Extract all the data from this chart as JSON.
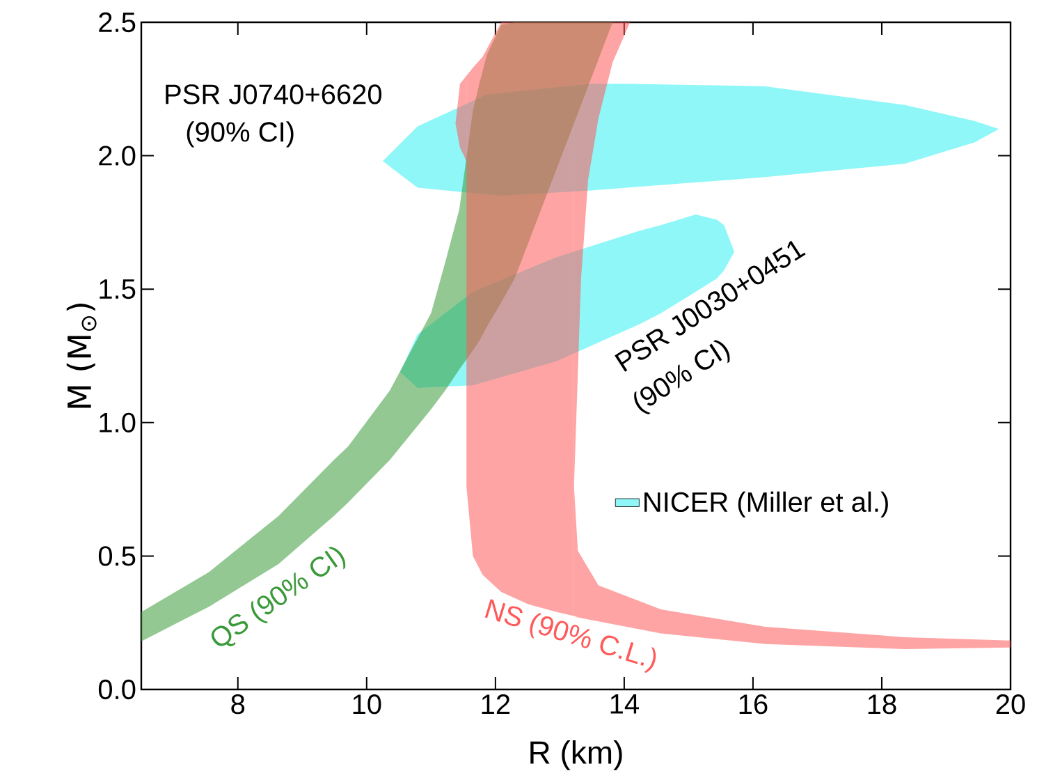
{
  "chart_data": {
    "type": "area",
    "xlabel": "R (km)",
    "ylabel": "M (M$_{⊙}$)",
    "xlim": [
      6.5,
      20
    ],
    "ylim": [
      0,
      2.5
    ],
    "xticks": [
      8,
      10,
      12,
      14,
      16,
      18,
      20
    ],
    "yticks": [
      {
        "value": 0,
        "label": "0.0"
      },
      {
        "value": 0.5,
        "label": "0.5"
      },
      {
        "value": 1,
        "label": "1.0"
      },
      {
        "value": 1.5,
        "label": "1.5"
      },
      {
        "value": 2,
        "label": "2.0"
      },
      {
        "value": 2.5,
        "label": "2.5"
      }
    ],
    "legend": "right",
    "series": [
      {
        "name": "NICER (Miller et al.)",
        "color": "#33f0f0",
        "x": [
          10.25,
          10.79,
          11.87,
          12.09,
          13.49,
          14.03,
          16.19,
          18.36,
          19.44,
          19.82
        ],
        "values": [
          null,
          null,
          null,
          null,
          null,
          null,
          null,
          null,
          null,
          null
        ],
        "upper": [
          1.98,
          2.11,
          2.23,
          2.235,
          2.27,
          2.27,
          2.26,
          2.19,
          2.13,
          2.1
        ],
        "lower": [
          1.98,
          1.88,
          1.855,
          1.85,
          1.87,
          1.88,
          1.92,
          1.97,
          2.05,
          2.1
        ]
      },
      {
        "color": "#33f0f0",
        "x": [
          10.52,
          10.79,
          11.65,
          12.95,
          14.25,
          14.57,
          15.11,
          15.44,
          15.55,
          15.71
        ],
        "values": [
          null,
          null,
          null,
          null,
          null,
          null,
          null,
          null,
          null,
          null
        ],
        "upper": [
          1.19,
          1.33,
          1.49,
          1.62,
          1.72,
          1.74,
          1.78,
          1.76,
          1.74,
          1.64
        ],
        "lower": [
          1.19,
          1.13,
          1.14,
          1.23,
          1.37,
          1.41,
          1.49,
          1.54,
          1.57,
          1.64
        ]
      },
      {
        "name": "QS (90% CI)",
        "color": "#3a9a3a",
        "x": [
          6.5,
          7.55,
          8.63,
          9.49,
          9.71,
          10.36,
          11.0,
          11.22,
          11.44,
          11.65,
          11.76,
          11.87,
          12.09,
          12.3,
          13.82
        ],
        "values": [
          null,
          null,
          null,
          null,
          null,
          null,
          null,
          null,
          null,
          null,
          null,
          null,
          null,
          null,
          null
        ],
        "upper": [
          0.29,
          0.44,
          0.65,
          0.86,
          0.91,
          1.12,
          1.41,
          1.6,
          1.8,
          2.17,
          2.28,
          2.38,
          2.49,
          2.5,
          2.5
        ],
        "lower": [
          0.18,
          0.31,
          0.47,
          0.65,
          0.7,
          0.86,
          1.05,
          1.12,
          1.2,
          1.27,
          1.31,
          1.36,
          1.45,
          1.54,
          2.5
        ]
      },
      {
        "name": "NS (90% C.L.)",
        "color": "#ff5a5a",
        "x": [
          11.55,
          11.65,
          11.8,
          12.09,
          12.5,
          12.95,
          13.22
        ],
        "values": [
          null,
          null,
          null,
          null,
          null,
          null,
          null
        ],
        "upper": [
          2.3,
          2.33,
          2.37,
          2.5,
          2.5,
          2.5,
          2.5
        ],
        "lower": [
          0.76,
          0.5,
          0.43,
          0.365,
          0.32,
          0.29,
          0.275
        ]
      },
      {
        "color": "#ff5a5a",
        "x": [
          13.22,
          13.33,
          13.44,
          13.6,
          13.82,
          14.09
        ],
        "values": [
          null,
          null,
          null,
          null,
          null,
          null
        ],
        "upper": [
          2.5,
          2.5,
          2.5,
          2.5,
          2.5,
          2.5
        ],
        "lower": [
          0.76,
          1.54,
          1.91,
          2.14,
          2.35,
          2.5
        ]
      },
      {
        "color": "#ff5a5a",
        "x": [
          13.22,
          13.28,
          13.6,
          14.57,
          16.19,
          18.36,
          20
        ],
        "values": [
          null,
          null,
          null,
          null,
          null,
          null,
          null
        ],
        "upper": [
          0.76,
          0.52,
          0.39,
          0.3,
          0.235,
          0.196,
          0.183
        ],
        "lower": [
          0.275,
          0.27,
          0.255,
          0.21,
          0.17,
          0.151,
          0.157
        ]
      },
      {
        "color": "#ff5a5a",
        "x": [
          11.38,
          11.45,
          11.55
        ],
        "values": [
          null,
          null,
          null
        ],
        "upper": [
          2.12,
          2.27,
          2.3
        ],
        "lower": [
          2.12,
          2.03,
          1.98
        ]
      }
    ],
    "annotations": [
      "PSR J0740+6620",
      "(90% CI)",
      "PSR J0030+0451",
      "(90% CI)"
    ]
  }
}
